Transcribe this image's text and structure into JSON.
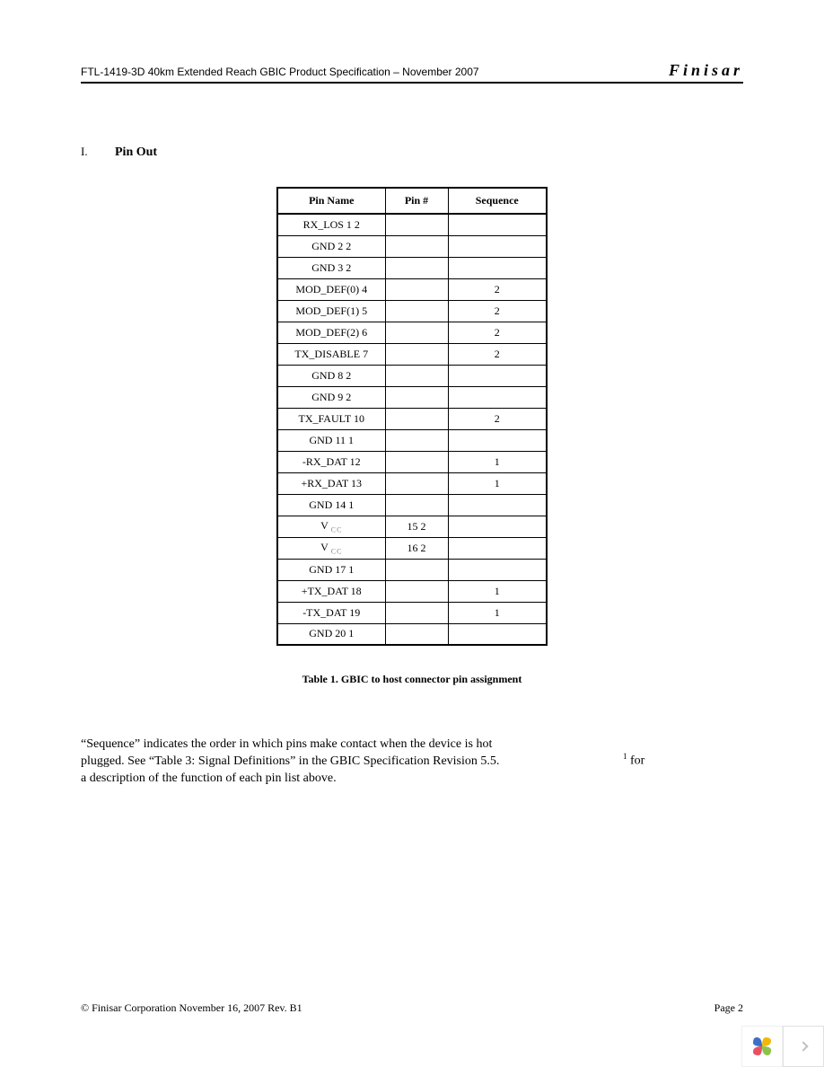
{
  "header": {
    "left": "FTL-1419-3D 40km Extended Reach GBIC Product Specification – November 2007",
    "right": "Finisar"
  },
  "section": {
    "number": "I.",
    "title": "Pin Out"
  },
  "table": {
    "columns": [
      "Pin Name",
      "Pin #",
      "Sequence"
    ],
    "rows": [
      {
        "name": "RX_LOS 1 2",
        "pin": "",
        "seq": ""
      },
      {
        "name": "GND 2 2",
        "pin": "",
        "seq": ""
      },
      {
        "name": "GND 3 2",
        "pin": "",
        "seq": ""
      },
      {
        "name": "MOD_DEF(0) 4",
        "pin": "",
        "seq": "2"
      },
      {
        "name": "MOD_DEF(1) 5",
        "pin": "",
        "seq": "2"
      },
      {
        "name": "MOD_DEF(2) 6",
        "pin": "",
        "seq": "2"
      },
      {
        "name": "TX_DISABLE 7",
        "pin": "",
        "seq": "2"
      },
      {
        "name": "GND 8 2",
        "pin": "",
        "seq": ""
      },
      {
        "name": "GND 9 2",
        "pin": "",
        "seq": ""
      },
      {
        "name": "TX_FAULT 10",
        "pin": "",
        "seq": "2"
      },
      {
        "name": "GND 11 1",
        "pin": "",
        "seq": ""
      },
      {
        "name": "-RX_DAT 12",
        "pin": "",
        "seq": "1"
      },
      {
        "name": "+RX_DAT 13",
        "pin": "",
        "seq": "1"
      },
      {
        "name": "GND 14 1",
        "pin": "",
        "seq": ""
      },
      {
        "name": "V",
        "name_sub": "CC",
        "pin": "15 2",
        "seq": ""
      },
      {
        "name": "V",
        "name_sub": "CC",
        "pin": "16 2",
        "seq": ""
      },
      {
        "name": "GND 17 1",
        "pin": "",
        "seq": ""
      },
      {
        "name": "+TX_DAT 18",
        "pin": "",
        "seq": "1"
      },
      {
        "name": "-TX_DAT 19",
        "pin": "",
        "seq": "1"
      },
      {
        "name": "GND 20 1",
        "pin": "",
        "seq": ""
      }
    ],
    "caption": "Table 1.  GBIC to host connector pin assignment"
  },
  "body": {
    "line1": "“Sequence” indicates the order in which pins make contact when the device is hot",
    "line2": "plugged.  See “Table 3: Signal Definitions” in the GBIC Specification Revision 5.5.",
    "line3": "a description of the function of each pin list above.",
    "footnote_sup": "1",
    "footnote_text": " for"
  },
  "footer": {
    "left": "© Finisar Corporation November 16, 2007 Rev. B1",
    "right": "Page 2"
  },
  "logo_colors": {
    "petal1": "#3b6fc8",
    "petal2": "#f2b807",
    "petal3": "#8bc34a",
    "petal4": "#e94f64"
  }
}
